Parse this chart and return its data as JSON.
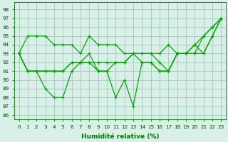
{
  "xlabel": "Humidité relative (%)",
  "xlim": [
    -0.5,
    23.5
  ],
  "ylim": [
    85.5,
    98.8
  ],
  "yticks": [
    86,
    87,
    88,
    89,
    90,
    91,
    92,
    93,
    94,
    95,
    96,
    97,
    98
  ],
  "xticks": [
    0,
    1,
    2,
    3,
    4,
    5,
    6,
    7,
    8,
    9,
    10,
    11,
    12,
    13,
    14,
    15,
    16,
    17,
    18,
    19,
    20,
    21,
    22,
    23
  ],
  "bg_color": "#d8f0e8",
  "grid_color": "#a8ccbc",
  "line_color": "#00aa00",
  "series": [
    [
      93,
      95,
      95,
      95,
      94,
      94,
      94,
      93,
      95,
      94,
      94,
      94,
      93,
      93,
      93,
      93,
      93,
      94,
      93,
      93,
      94,
      95,
      96,
      97
    ],
    [
      93,
      91,
      91,
      91,
      91,
      91,
      92,
      92,
      92,
      92,
      92,
      92,
      92,
      93,
      93,
      93,
      92,
      91,
      93,
      93,
      93,
      93,
      95,
      97
    ],
    [
      93,
      91,
      91,
      91,
      91,
      91,
      92,
      92,
      92,
      91,
      91,
      92,
      92,
      93,
      92,
      92,
      91,
      91,
      93,
      93,
      94,
      93,
      95,
      97
    ],
    [
      93,
      91,
      91,
      89,
      88,
      88,
      91,
      92,
      93,
      91,
      91,
      88,
      90,
      87,
      92,
      92,
      91,
      91,
      93,
      93,
      93,
      95,
      96,
      97
    ]
  ]
}
